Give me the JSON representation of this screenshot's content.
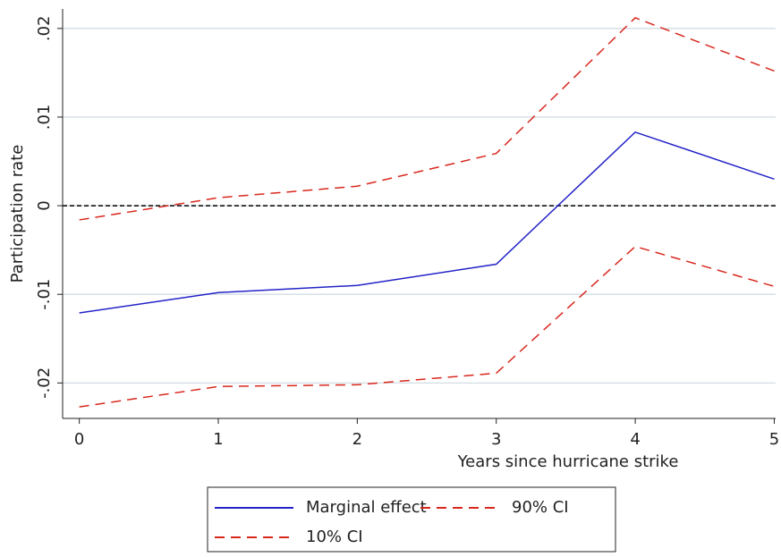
{
  "chart_data": {
    "type": "line",
    "x_label": "Years since hurricane strike",
    "y_label": "Participation rate",
    "x": [
      0,
      1,
      2,
      3,
      4,
      5
    ],
    "series": [
      {
        "name": "Marginal effect",
        "color": "#2323c8",
        "dash": "solid",
        "values": [
          -0.0121,
          -0.0098,
          -0.009,
          -0.0066,
          0.0083,
          0.003
        ]
      },
      {
        "name": "90% CI",
        "color": "#d8281e",
        "dash": "dashed",
        "values": [
          -0.0016,
          0.0009,
          0.0022,
          0.0059,
          0.0212,
          0.0152
        ]
      },
      {
        "name": "10% CI",
        "color": "#d8281e",
        "dash": "dashed",
        "values": [
          -0.0227,
          -0.0204,
          -0.0202,
          -0.0189,
          -0.0046,
          -0.0091
        ]
      }
    ],
    "xlim": [
      -0.12,
      5.01
    ],
    "ylim": [
      -0.024,
      0.0222
    ],
    "xticks": [
      0,
      1,
      2,
      3,
      4,
      5
    ],
    "yticks": [
      {
        "value": -0.02,
        "label": "-.02"
      },
      {
        "value": -0.01,
        "label": "-.01"
      },
      0,
      {
        "value": 0.01,
        "label": ".01"
      },
      {
        "value": 0.02,
        "label": ".02"
      }
    ],
    "reference_line": 0,
    "grid": true,
    "legend": "bottom"
  }
}
